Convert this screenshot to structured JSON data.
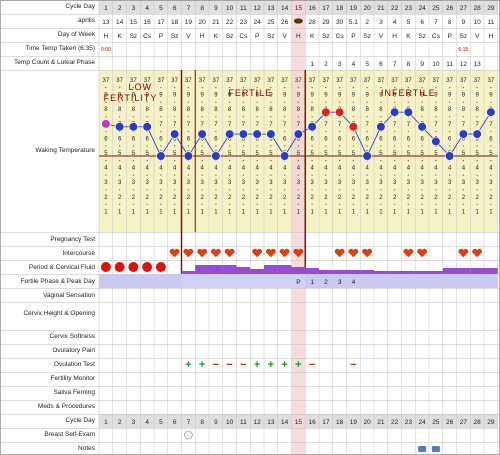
{
  "rows": {
    "cycle_day": "Cycle Day",
    "month": "április",
    "day_of_week": "Day of Week",
    "time_temp": "Time Temp Taken (6:35)",
    "temp_count": "Temp Count & Luteal Phase",
    "waking_temp": "Waking Temperature",
    "pregnancy_test": "Pregnancy Test",
    "intercourse": "Intercourse",
    "period": "Period & Cervical Fluid",
    "fertile_phase": "Fertile Phase & Peak Day",
    "vaginal_sensation": "Vaginal Sensation",
    "cervix_height": "Cervix Height & Opening",
    "cervix_softness": "Cervix Softness",
    "ovulatory_pain": "Ovulatory Pain",
    "ovulation_test": "Ovulation Test",
    "fertility_monitor": "Fertility Monitor",
    "saliva_ferning": "Saliva Ferning",
    "meds": "Meds & Procedures",
    "cycle_day_bottom": "Cycle Day",
    "breast_exam": "Breast Self-Exam",
    "notes": "Notes"
  },
  "days": [
    "1",
    "2",
    "3",
    "4",
    "5",
    "6",
    "7",
    "8",
    "9",
    "10",
    "11",
    "12",
    "13",
    "14",
    "15",
    "16",
    "17",
    "18",
    "19",
    "20",
    "21",
    "22",
    "23",
    "24",
    "25",
    "26",
    "27",
    "28",
    "29"
  ],
  "dates": [
    "13",
    "14",
    "15",
    "16",
    "17",
    "18",
    "19",
    "20",
    "21",
    "22",
    "23",
    "24",
    "25",
    "26",
    "",
    "28",
    "29",
    "30",
    "5.1",
    "2",
    "3",
    "4",
    "5",
    "6",
    "7",
    "8",
    "9",
    "10",
    "11"
  ],
  "weekdays": [
    "H",
    "K",
    "Sz",
    "Cs",
    "P",
    "Sz",
    "V",
    "H",
    "K",
    "Sz",
    "Cs",
    "P",
    "Sz",
    "V",
    "H",
    "K",
    "Sz",
    "Cs",
    "P",
    "Sz",
    "V",
    "H",
    "K",
    "Sz",
    "Cs",
    "P",
    "Sz",
    "V",
    "H"
  ],
  "time_first": "0:00",
  "time_late": "6:15",
  "temp_count_values": [
    "1",
    "2",
    "3",
    "4",
    "5",
    "6",
    "7",
    "8",
    "9",
    "10",
    "11",
    "12",
    "13"
  ],
  "temp_scale": [
    "37",
    "9",
    "8",
    "7",
    "6",
    "5",
    "4",
    "3",
    "2",
    "1"
  ],
  "phase_labels": {
    "low": "LOW FERTILITY",
    "fertile": "FERTILE",
    "infertile": "INFERTILE"
  },
  "temperature_levels": [
    6.2,
    6.0,
    6.0,
    6.0,
    4.0,
    5.5,
    4.0,
    5.5,
    4.0,
    5.5,
    5.5,
    5.5,
    5.5,
    4.0,
    5.5,
    6.0,
    7.0,
    7.0,
    6.0,
    4.0,
    6.0,
    7.0,
    7.0,
    6.0,
    5.0,
    4.0,
    5.5,
    5.5,
    7.0
  ],
  "temperature_colors": {
    "low": "#2a3cc0",
    "high": "#e02020",
    "first": "#b040b0"
  },
  "intercourse_days": [
    6,
    7,
    8,
    9,
    10,
    12,
    13,
    14,
    15,
    18,
    19,
    20,
    23,
    24,
    27,
    28
  ],
  "period_days": [
    1,
    2,
    3,
    4,
    5
  ],
  "fluid_heights": [
    0,
    0,
    0,
    0,
    0,
    0,
    3,
    9,
    9,
    9,
    7,
    5,
    9,
    9,
    7,
    6,
    4,
    4,
    4,
    4,
    3,
    3,
    3,
    3,
    3,
    6,
    6,
    6,
    6
  ],
  "fertile_codes": [
    "P",
    "1",
    "2",
    "3",
    "4"
  ],
  "ovulation_marks": [
    "+",
    "+",
    "−",
    "−",
    "−",
    "+",
    "+",
    "+",
    "+",
    "−"
  ],
  "ovulation_late_mark": "−",
  "colors": {
    "accent": "#8c0000",
    "fluid": "#9a4ad8",
    "fertile_band": "#c9c9f2",
    "header_bg": "#dfdfdf",
    "chart_bg": "#f7f2c6",
    "peak_col": "#f5d6d6"
  }
}
